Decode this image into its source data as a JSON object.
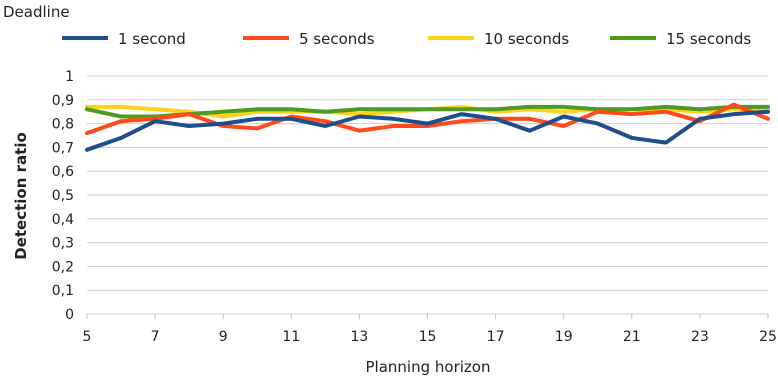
{
  "chart_data": {
    "type": "line",
    "legend_title": "Deadline",
    "legend_placement": "top",
    "xlabel": "Planning horizon",
    "ylabel": "Detection ratio",
    "x": [
      5,
      6,
      7,
      8,
      9,
      10,
      11,
      12,
      13,
      14,
      15,
      16,
      17,
      18,
      19,
      20,
      21,
      22,
      23,
      24,
      25
    ],
    "xlim": [
      5,
      25
    ],
    "ylim": [
      0,
      1
    ],
    "x_ticks": [
      "5",
      "7",
      "9",
      "11",
      "13",
      "15",
      "17",
      "19",
      "21",
      "23",
      "25"
    ],
    "y_ticks": [
      "0",
      "0,1",
      "0,2",
      "0,3",
      "0,4",
      "0,5",
      "0,6",
      "0,7",
      "0,8",
      "0,9",
      "1"
    ],
    "grid": "horizontal",
    "series": [
      {
        "name": "1 second",
        "color": "#1f4e8c",
        "values": [
          0.69,
          0.74,
          0.81,
          0.79,
          0.8,
          0.82,
          0.82,
          0.79,
          0.83,
          0.82,
          0.8,
          0.84,
          0.82,
          0.77,
          0.83,
          0.8,
          0.74,
          0.72,
          0.82,
          0.84,
          0.85
        ]
      },
      {
        "name": "5 seconds",
        "color": "#ff4a1c",
        "values": [
          0.76,
          0.81,
          0.82,
          0.84,
          0.79,
          0.78,
          0.83,
          0.81,
          0.77,
          0.79,
          0.79,
          0.81,
          0.82,
          0.82,
          0.79,
          0.85,
          0.84,
          0.85,
          0.81,
          0.88,
          0.82
        ]
      },
      {
        "name": "10 seconds",
        "color": "#ffd21a",
        "values": [
          0.87,
          0.87,
          0.86,
          0.85,
          0.83,
          0.85,
          0.85,
          0.85,
          0.84,
          0.85,
          0.86,
          0.87,
          0.85,
          0.86,
          0.85,
          0.86,
          0.86,
          0.86,
          0.85,
          0.86,
          0.86
        ]
      },
      {
        "name": "15 seconds",
        "color": "#4f9a1f",
        "values": [
          0.86,
          0.83,
          0.83,
          0.84,
          0.85,
          0.86,
          0.86,
          0.85,
          0.86,
          0.86,
          0.86,
          0.86,
          0.86,
          0.87,
          0.87,
          0.86,
          0.86,
          0.87,
          0.86,
          0.87,
          0.87
        ]
      }
    ]
  }
}
